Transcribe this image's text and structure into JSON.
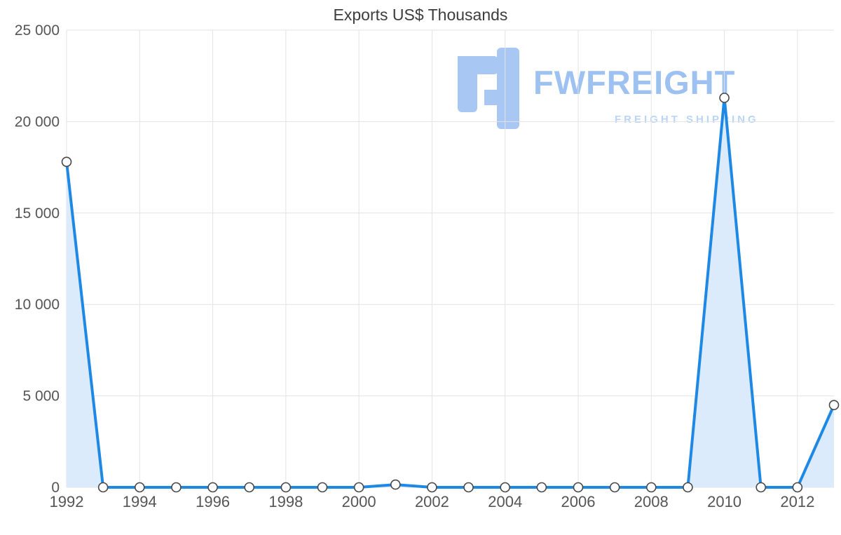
{
  "chart_data": {
    "type": "line",
    "title": "Exports US$ Thousands",
    "x": [
      1992,
      1993,
      1994,
      1995,
      1996,
      1997,
      1998,
      1999,
      2000,
      2001,
      2002,
      2003,
      2004,
      2005,
      2006,
      2007,
      2008,
      2009,
      2010,
      2011,
      2012,
      2013
    ],
    "values": [
      17800,
      0,
      0,
      0,
      0,
      0,
      0,
      0,
      0,
      150,
      0,
      0,
      0,
      0,
      0,
      0,
      0,
      0,
      21300,
      0,
      0,
      4500
    ],
    "ylim": [
      0,
      25000
    ],
    "y_ticks": [
      0,
      5000,
      10000,
      15000,
      20000,
      25000
    ],
    "y_tick_labels": [
      "0",
      "5 000",
      "10 000",
      "15 000",
      "20 000",
      "25 000"
    ],
    "x_ticks": [
      1992,
      1994,
      1996,
      1998,
      2000,
      2002,
      2004,
      2006,
      2008,
      2010,
      2012
    ],
    "x_tick_labels": [
      "1992",
      "1994",
      "1996",
      "1998",
      "2000",
      "2002",
      "2004",
      "2006",
      "2008",
      "2010",
      "2012"
    ],
    "grid": true,
    "legend": "none",
    "line_color": "#1e88e5",
    "area_color": "#dcebfb",
    "marker_fill": "#ffffff",
    "marker_stroke": "#474747",
    "grid_color": "#e3e3e3",
    "tick_label_color": "#555555",
    "title_color": "#3d3d3d"
  },
  "watermark": {
    "brand": "FWFREIGHT",
    "tagline": "FREIGHT SHIPPING",
    "brand_color": "#9dc1f0",
    "tagline_color": "#b9d5f7",
    "logo_color": "#a9c7f3"
  }
}
